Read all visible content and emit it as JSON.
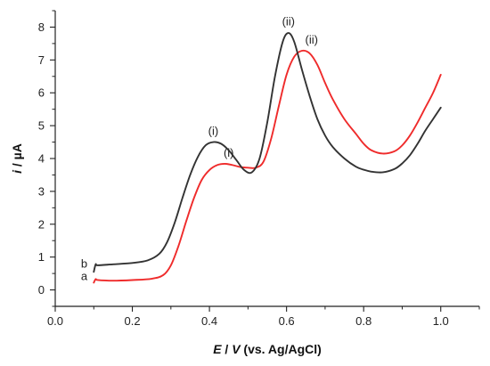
{
  "chart_data": {
    "type": "line",
    "title": "",
    "xlabel": "E / V (vs. Ag/AgCl)",
    "ylabel": "i / µA",
    "xlim": [
      0.0,
      1.1
    ],
    "ylim": [
      -0.5,
      8.5
    ],
    "xticks": [
      "0.0",
      "0.2",
      "0.4",
      "0.6",
      "0.8",
      "1.0"
    ],
    "xtick_values": [
      0.0,
      0.2,
      0.4,
      0.6,
      0.8,
      1.0
    ],
    "yticks": [
      "0",
      "1",
      "2",
      "3",
      "4",
      "5",
      "6",
      "7",
      "8"
    ],
    "ytick_values": [
      0,
      1,
      2,
      3,
      4,
      5,
      6,
      7,
      8
    ],
    "grid": false,
    "series": [
      {
        "name": "a",
        "color": "#ef2b2b",
        "x": [
          0.1,
          0.105,
          0.11,
          0.15,
          0.2,
          0.25,
          0.28,
          0.3,
          0.32,
          0.34,
          0.36,
          0.38,
          0.4,
          0.42,
          0.44,
          0.46,
          0.48,
          0.5,
          0.52,
          0.54,
          0.56,
          0.58,
          0.6,
          0.62,
          0.64,
          0.66,
          0.68,
          0.7,
          0.72,
          0.75,
          0.78,
          0.8,
          0.82,
          0.85,
          0.88,
          0.9,
          0.92,
          0.94,
          0.96,
          0.98,
          1.0
        ],
        "y": [
          0.22,
          0.33,
          0.3,
          0.28,
          0.3,
          0.34,
          0.45,
          0.75,
          1.35,
          2.1,
          2.8,
          3.35,
          3.65,
          3.8,
          3.84,
          3.8,
          3.74,
          3.72,
          3.72,
          3.9,
          4.6,
          5.6,
          6.55,
          7.1,
          7.28,
          7.2,
          6.85,
          6.3,
          5.8,
          5.2,
          4.75,
          4.45,
          4.25,
          4.15,
          4.22,
          4.4,
          4.7,
          5.1,
          5.55,
          6.0,
          6.55
        ]
      },
      {
        "name": "b",
        "color": "#333333",
        "x": [
          0.1,
          0.105,
          0.11,
          0.15,
          0.2,
          0.24,
          0.27,
          0.29,
          0.31,
          0.33,
          0.35,
          0.37,
          0.39,
          0.41,
          0.43,
          0.45,
          0.47,
          0.49,
          0.51,
          0.53,
          0.55,
          0.57,
          0.59,
          0.605,
          0.62,
          0.64,
          0.66,
          0.68,
          0.7,
          0.72,
          0.75,
          0.78,
          0.8,
          0.82,
          0.85,
          0.88,
          0.9,
          0.92,
          0.94,
          0.96,
          0.98,
          1.0
        ],
        "y": [
          0.55,
          0.78,
          0.75,
          0.78,
          0.82,
          0.9,
          1.1,
          1.45,
          2.05,
          2.8,
          3.5,
          4.05,
          4.4,
          4.5,
          4.45,
          4.25,
          3.95,
          3.65,
          3.58,
          4.0,
          5.1,
          6.5,
          7.55,
          7.82,
          7.55,
          6.7,
          5.9,
          5.2,
          4.7,
          4.35,
          4.0,
          3.75,
          3.66,
          3.6,
          3.58,
          3.68,
          3.85,
          4.1,
          4.45,
          4.85,
          5.2,
          5.55
        ]
      }
    ],
    "annotations": [
      {
        "text": "(i)",
        "x": 0.41,
        "y": 4.72
      },
      {
        "text": "(i)",
        "x": 0.45,
        "y": 4.05
      },
      {
        "text": "(ii)",
        "x": 0.605,
        "y": 8.05
      },
      {
        "text": "(ii)",
        "x": 0.665,
        "y": 7.5
      },
      {
        "text": "b",
        "x": 0.075,
        "y": 0.68
      },
      {
        "text": "a",
        "x": 0.075,
        "y": 0.3
      }
    ]
  }
}
